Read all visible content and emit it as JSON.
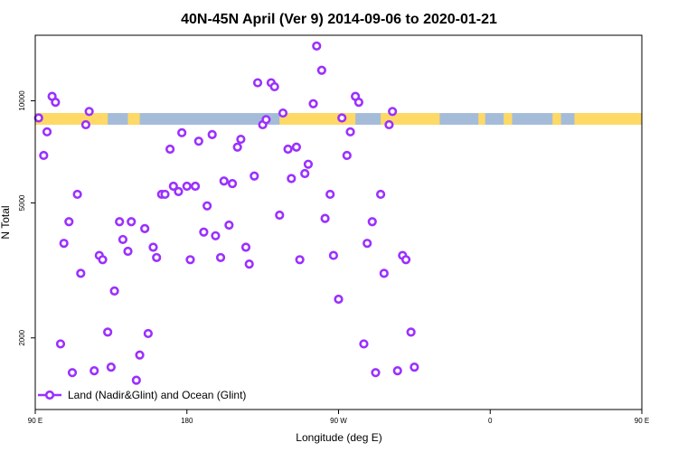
{
  "chart_data": {
    "type": "scatter",
    "title": "40N-45N April (Ver 9)   2014-09-06 to 2020-01-21",
    "xlabel": "Longitude (deg E)",
    "ylabel": "N Total",
    "x_scale": "longitude (wraps, starting at 90 E)",
    "y_scale": "log",
    "xlim": [
      90,
      450
    ],
    "ylim": [
      1230,
      15600
    ],
    "x_ticks": [
      {
        "value": 90,
        "label": "90 E"
      },
      {
        "value": 180,
        "label": "180"
      },
      {
        "value": 270,
        "label": "90 W"
      },
      {
        "value": 360,
        "label": "0"
      },
      {
        "value": 450,
        "label": "90 E"
      },
      {
        "value": 540,
        "label": "180"
      }
    ],
    "y_ticks": [
      {
        "value": 2000,
        "label": "2000"
      },
      {
        "value": 5000,
        "label": "5000"
      },
      {
        "value": 10000,
        "label": "10000"
      }
    ],
    "grid": false,
    "legend": {
      "placement": "bottom-left",
      "entries": [
        "Land (Nadir&Glint) and Ocean (Glint)"
      ]
    },
    "colors": {
      "points": "#9b30ff",
      "land": "#ffd966",
      "ocean": "#a5bcd9"
    },
    "surface_band": {
      "y_range": [
        8500,
        9200
      ],
      "land_segments": [
        [
          90,
          133
        ],
        [
          145,
          152
        ],
        [
          235,
          280
        ],
        [
          295,
          330
        ],
        [
          353,
          357
        ],
        [
          368,
          373
        ],
        [
          397,
          402
        ],
        [
          410,
          475
        ],
        [
          488,
          493
        ],
        [
          502,
          540
        ]
      ]
    },
    "series": [
      {
        "name": "Land (Nadir&Glint) and Ocean (Glint)",
        "points": [
          [
            92,
            8900
          ],
          [
            95,
            6900
          ],
          [
            97,
            8100
          ],
          [
            100,
            10300
          ],
          [
            102,
            9900
          ],
          [
            105,
            1920
          ],
          [
            107,
            3800
          ],
          [
            110,
            4400
          ],
          [
            112,
            1580
          ],
          [
            115,
            5300
          ],
          [
            117,
            3100
          ],
          [
            120,
            8500
          ],
          [
            122,
            9300
          ],
          [
            125,
            1600
          ],
          [
            128,
            3500
          ],
          [
            130,
            3400
          ],
          [
            133,
            2080
          ],
          [
            135,
            1640
          ],
          [
            137,
            2750
          ],
          [
            140,
            4400
          ],
          [
            142,
            3900
          ],
          [
            145,
            3600
          ],
          [
            147,
            4400
          ],
          [
            150,
            1500
          ],
          [
            152,
            1780
          ],
          [
            155,
            4200
          ],
          [
            157,
            2060
          ],
          [
            160,
            3700
          ],
          [
            162,
            3450
          ],
          [
            165,
            5300
          ],
          [
            167,
            5300
          ],
          [
            170,
            7200
          ],
          [
            172,
            5600
          ],
          [
            175,
            5400
          ],
          [
            177,
            8050
          ],
          [
            180,
            5600
          ],
          [
            182,
            3400
          ],
          [
            185,
            5600
          ],
          [
            187,
            7600
          ],
          [
            190,
            4100
          ],
          [
            192,
            4900
          ],
          [
            195,
            7950
          ],
          [
            197,
            4000
          ],
          [
            200,
            3450
          ],
          [
            202,
            5800
          ],
          [
            205,
            4300
          ],
          [
            207,
            5700
          ],
          [
            210,
            7300
          ],
          [
            212,
            7700
          ],
          [
            215,
            3700
          ],
          [
            217,
            3300
          ],
          [
            220,
            6000
          ],
          [
            222,
            11300
          ],
          [
            225,
            8500
          ],
          [
            227,
            8800
          ],
          [
            230,
            11300
          ],
          [
            232,
            11000
          ],
          [
            235,
            4600
          ],
          [
            237,
            9200
          ],
          [
            240,
            7200
          ],
          [
            242,
            5900
          ],
          [
            245,
            7300
          ],
          [
            247,
            3400
          ],
          [
            250,
            6100
          ],
          [
            252,
            6500
          ],
          [
            255,
            9800
          ],
          [
            257,
            14500
          ],
          [
            260,
            12300
          ],
          [
            262,
            4500
          ],
          [
            265,
            5300
          ],
          [
            267,
            3500
          ],
          [
            270,
            2600
          ],
          [
            272,
            8900
          ],
          [
            275,
            6900
          ],
          [
            277,
            8100
          ],
          [
            280,
            10300
          ],
          [
            282,
            9900
          ],
          [
            285,
            1920
          ],
          [
            287,
            3800
          ],
          [
            290,
            4400
          ],
          [
            292,
            1580
          ],
          [
            295,
            5300
          ],
          [
            297,
            3100
          ],
          [
            300,
            8500
          ],
          [
            302,
            9300
          ],
          [
            305,
            1600
          ],
          [
            308,
            3500
          ],
          [
            310,
            3400
          ],
          [
            313,
            2080
          ],
          [
            315,
            1640
          ]
        ]
      }
    ]
  }
}
